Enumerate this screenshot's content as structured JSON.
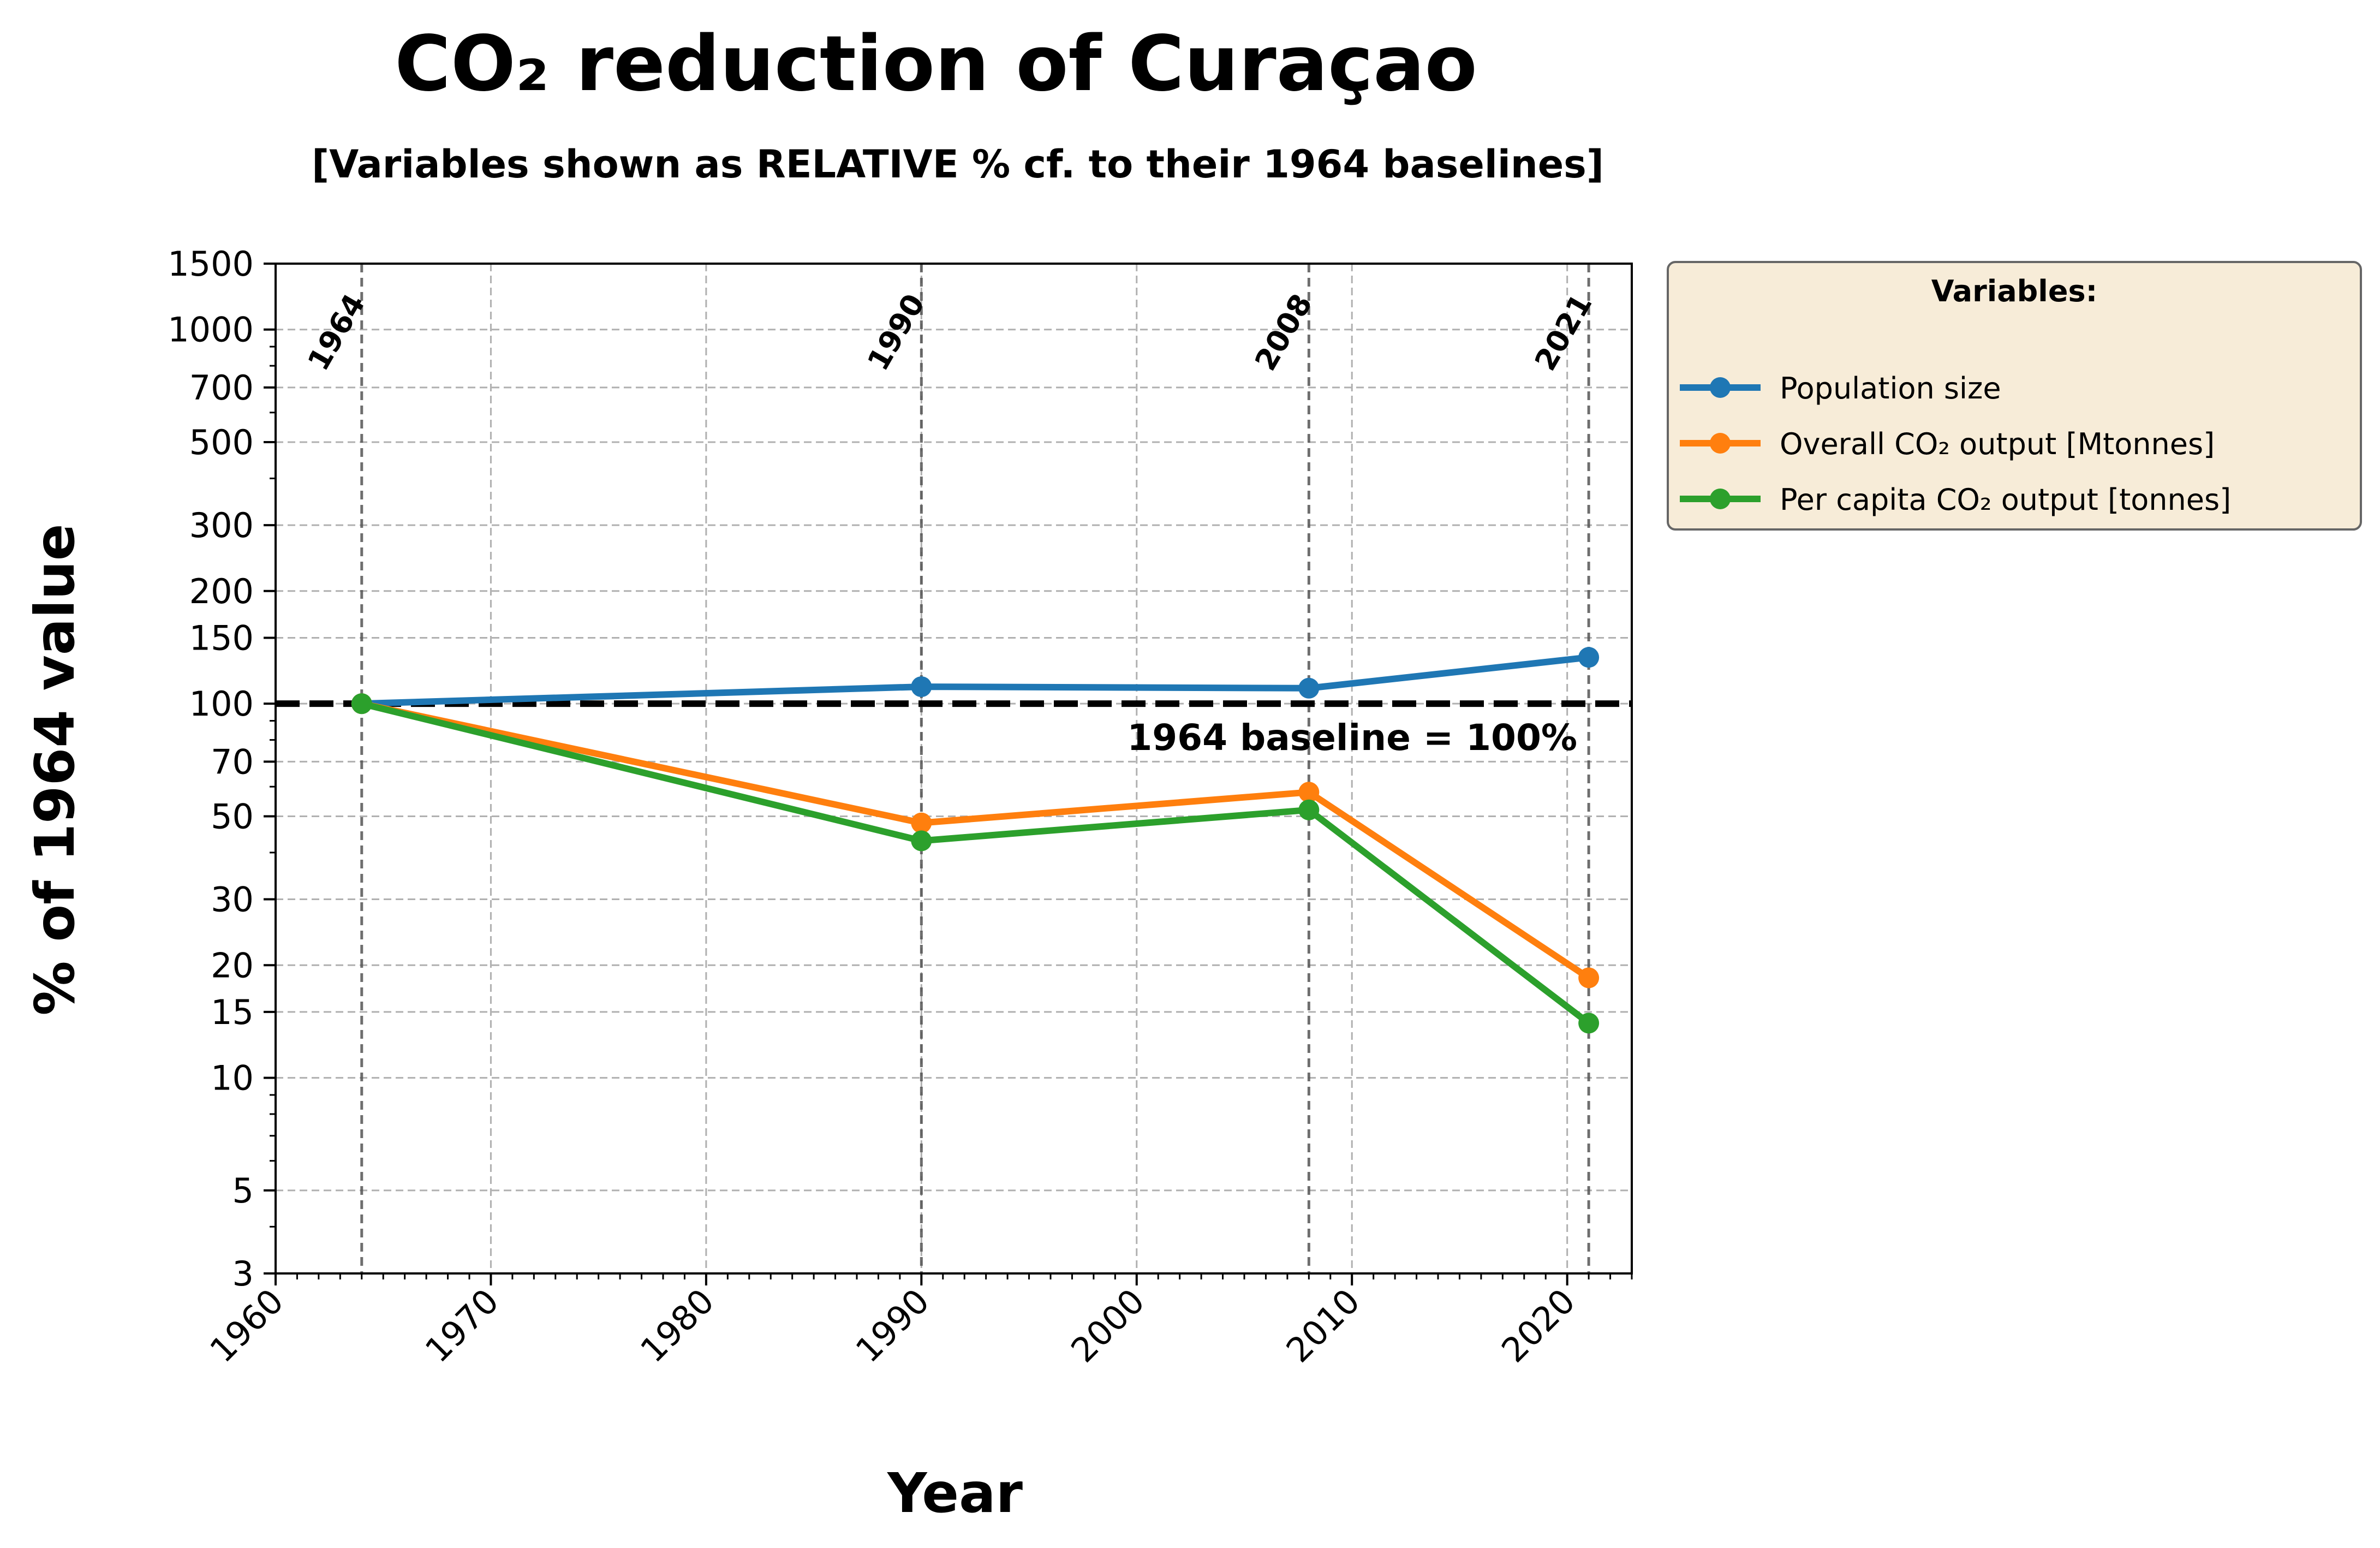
{
  "chart_data": {
    "type": "line",
    "title": "CO₂ reduction of Curaçao",
    "subtitle": "[Variables shown as RELATIVE % cf. to their 1964 baselines]",
    "xlabel": "Year",
    "ylabel": "% of 1964 value",
    "xlim": [
      1960,
      2023
    ],
    "ylim": [
      3,
      1500
    ],
    "yscale": "log",
    "x_ticks": [
      1960,
      1970,
      1980,
      1990,
      2000,
      2010,
      2020
    ],
    "y_ticks": [
      3,
      5,
      10,
      15,
      20,
      30,
      50,
      70,
      100,
      150,
      200,
      300,
      500,
      700,
      1000,
      1500
    ],
    "grid": true,
    "x": [
      1964,
      1990,
      2008,
      2021
    ],
    "series": [
      {
        "name": "Population size",
        "color": "#1f77b4",
        "values": [
          100,
          111,
          110,
          133
        ]
      },
      {
        "name": "Overall CO₂ output  [Mtonnes]",
        "color": "#ff7f0e",
        "values": [
          100,
          48,
          58,
          18.5
        ]
      },
      {
        "name": "Per capita CO₂ output  [tonnes]",
        "color": "#2ca02c",
        "values": [
          100,
          43,
          52,
          14
        ]
      }
    ],
    "vertical_markers": [
      {
        "year": 1964,
        "label": "1964"
      },
      {
        "year": 1990,
        "label": "1990"
      },
      {
        "year": 2008,
        "label": "2008"
      },
      {
        "year": 2021,
        "label": "2021"
      }
    ],
    "baseline": {
      "value": 100,
      "label": "1964 baseline = 100%"
    },
    "legend": {
      "title": "Variables:",
      "placement": "outside upper right",
      "background": "#f7ecd8"
    }
  }
}
